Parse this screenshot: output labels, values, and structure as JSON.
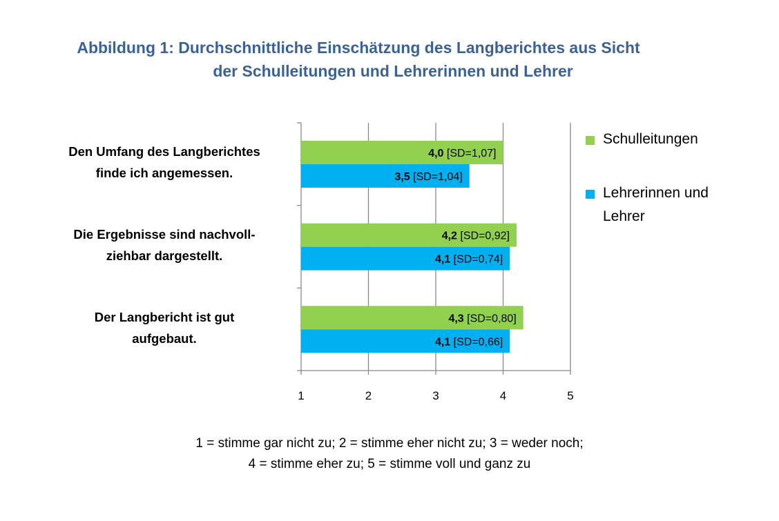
{
  "title": {
    "line1": "Abbildung 1: Durchschnittliche Einschätzung des Langberichtes aus Sicht",
    "line2": "der Schulleitungen und Lehrerinnen und Lehrer"
  },
  "chart_data": {
    "type": "bar",
    "orientation": "horizontal",
    "categories": [
      "Den Umfang des Langberichtes finde ich angemessen.",
      "Die Ergebnisse sind nachvoll-ziehbar dargestellt.",
      "Der Langbericht ist gut aufgebaut."
    ],
    "category_lines": [
      [
        "Den Umfang des Langberichtes",
        "finde ich angemessen."
      ],
      [
        "Die Ergebnisse sind nachvoll-",
        "ziehbar dargestellt."
      ],
      [
        "Der Langbericht ist gut",
        "aufgebaut."
      ]
    ],
    "series": [
      {
        "name": "Schulleitungen",
        "color": "#92d050",
        "values": [
          4.0,
          4.2,
          4.3
        ],
        "value_labels": [
          "4,0",
          "4,2",
          "4,3"
        ],
        "sd_labels": [
          "[SD=1,07]",
          "[SD=0,92]",
          "[SD=0,80]"
        ]
      },
      {
        "name": "Lehrerinnen und Lehrer",
        "color": "#00b0f0",
        "values": [
          3.5,
          4.1,
          4.1
        ],
        "value_labels": [
          "3,5",
          "4,1",
          "4,1"
        ],
        "sd_labels": [
          "[SD=1,04]",
          "[SD=0,74]",
          "[SD=0,66]"
        ]
      }
    ],
    "legend_lines": [
      [
        "Schulleitungen"
      ],
      [
        "Lehrerinnen und",
        "Lehrer"
      ]
    ],
    "xlim": [
      1,
      5
    ],
    "xticks": [
      "1",
      "2",
      "3",
      "4",
      "5"
    ],
    "grid": "vertical",
    "legend_position": "right"
  },
  "note": {
    "line1": "1 = stimme gar nicht zu; 2 = stimme eher nicht zu; 3 = weder noch;",
    "line2": "4 = stimme eher zu; 5 = stimme voll und ganz zu"
  }
}
